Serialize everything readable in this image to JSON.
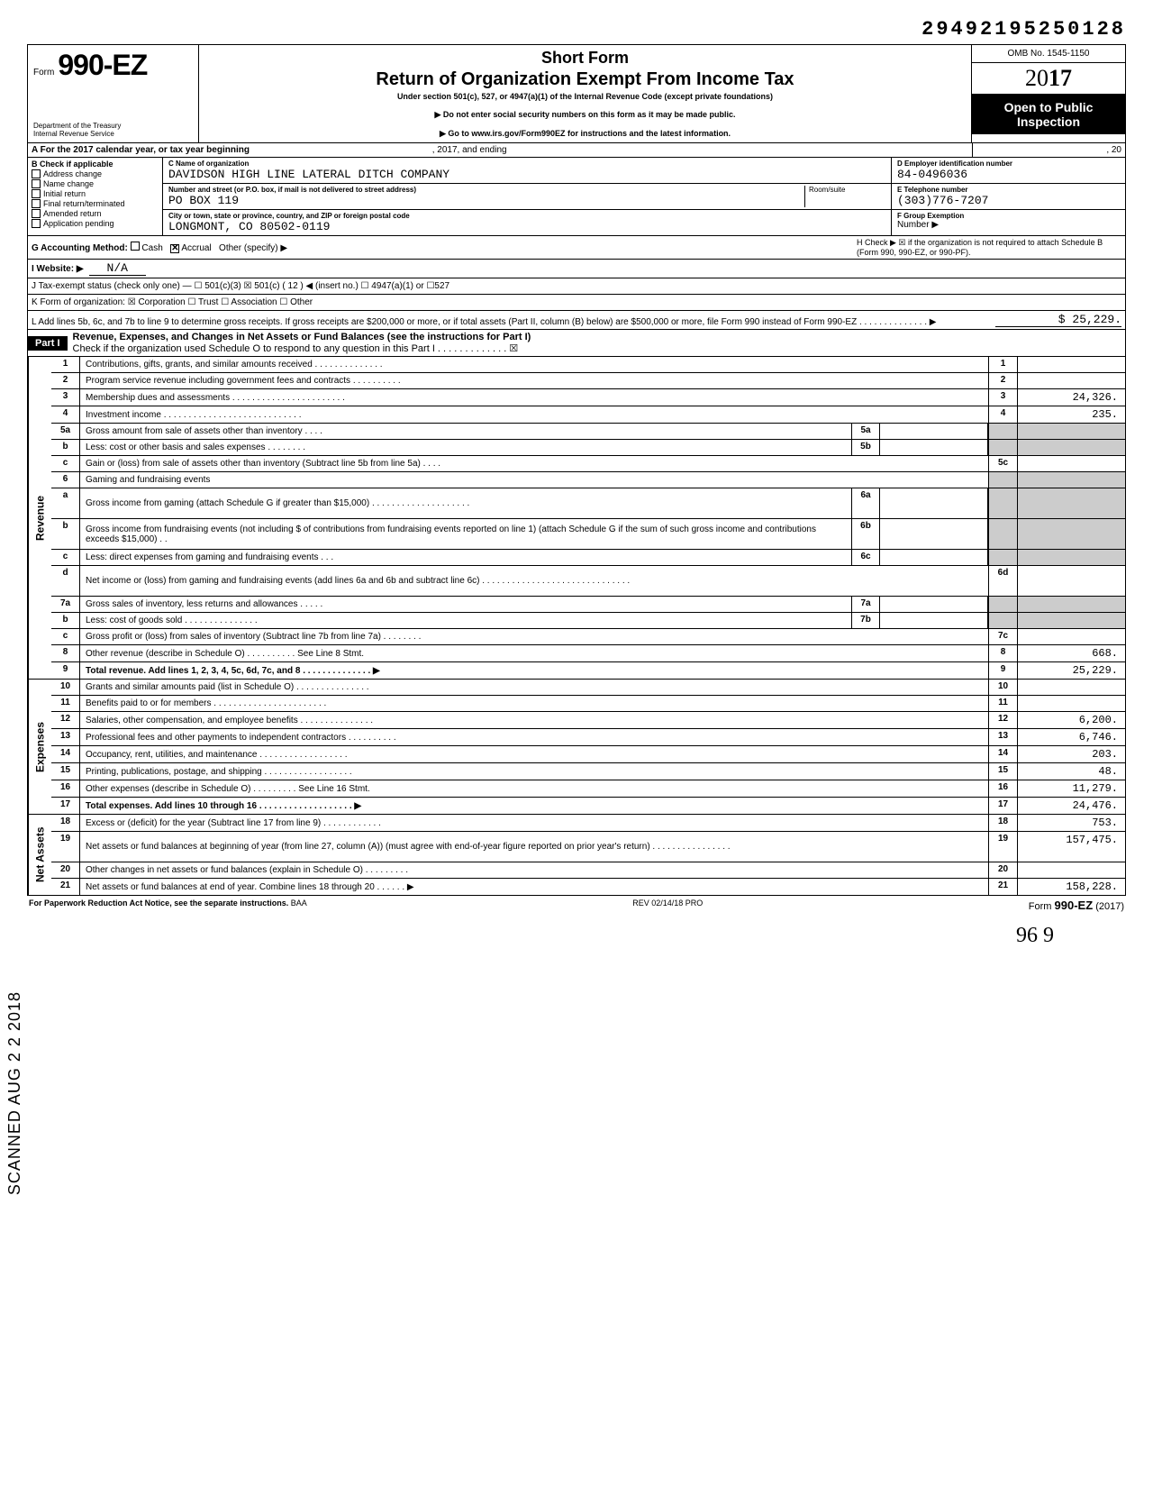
{
  "top_tracking": "29492195250128",
  "header": {
    "form_word": "Form",
    "form_number": "990-EZ",
    "short_form": "Short Form",
    "title": "Return of Organization Exempt From Income Tax",
    "subtitle": "Under section 501(c), 527, or 4947(a)(1) of the Internal Revenue Code (except private foundations)",
    "warn1": "▶ Do not enter social security numbers on this form as it may be made public.",
    "warn2": "▶ Go to www.irs.gov/Form990EZ for instructions and the latest information.",
    "dept1": "Department of the Treasury",
    "dept2": "Internal Revenue Service",
    "omb": "OMB No. 1545-1150",
    "year": "2017",
    "open": "Open to Public Inspection"
  },
  "line_a": {
    "text": "A  For the 2017 calendar year, or tax year beginning",
    "mid": ", 2017, and ending",
    "end": ", 20"
  },
  "box_b": {
    "title": "B  Check if applicable",
    "opts": [
      "Address change",
      "Name change",
      "Initial return",
      "Final return/terminated",
      "Amended return",
      "Application pending"
    ]
  },
  "box_c": {
    "label": "C  Name of organization",
    "name": "DAVIDSON HIGH LINE LATERAL DITCH COMPANY",
    "addr_label": "Number and street (or P.O. box, if mail is not delivered to street address)",
    "addr": "PO BOX 119",
    "room_label": "Room/suite",
    "city_label": "City or town, state or province, country, and ZIP or foreign postal code",
    "city": "LONGMONT, CO 80502-0119"
  },
  "box_d": {
    "label": "D Employer identification number",
    "val": "84-0496036"
  },
  "box_e": {
    "label": "E Telephone number",
    "val": "(303)776-7207"
  },
  "box_f": {
    "label": "F Group Exemption",
    "label2": "Number ▶"
  },
  "line_g": {
    "label": "G  Accounting Method:",
    "cash": "Cash",
    "accrual": "Accrual",
    "other": "Other (specify) ▶"
  },
  "line_h": "H  Check ▶ ☒ if the organization is not required to attach Schedule B (Form 990, 990-EZ, or 990-PF).",
  "line_i": {
    "label": "I   Website: ▶",
    "val": "N/A"
  },
  "line_j": "J  Tax-exempt status (check only one) — ☐ 501(c)(3)   ☒ 501(c) ( 12 ) ◀ (insert no.) ☐ 4947(a)(1) or   ☐527",
  "line_k": "K  Form of organization:   ☒ Corporation    ☐ Trust    ☐ Association    ☐ Other",
  "line_l": {
    "text": "L  Add lines 5b, 6c, and 7b to line 9 to determine gross receipts. If gross receipts are $200,000 or more, or if total assets (Part II, column (B) below) are $500,000 or more, file Form 990 instead of Form 990-EZ . . . . . . . . . . . . . . ▶",
    "val": "25,229."
  },
  "part1": {
    "label": "Part I",
    "title": "Revenue, Expenses, and Changes in Net Assets or Fund Balances (see the instructions for Part I)",
    "check_line": "Check if the organization used Schedule O to respond to any question in this Part I . . . . . . . . . . . . . ☒"
  },
  "rows": [
    {
      "n": "1",
      "d": "Contributions, gifts, grants, and similar amounts received . . . . . . . . . . . . . .",
      "rn": "1",
      "rv": ""
    },
    {
      "n": "2",
      "d": "Program service revenue including government fees and contracts . . . . . . . . . .",
      "rn": "2",
      "rv": ""
    },
    {
      "n": "3",
      "d": "Membership dues and assessments . . . . . . . . . . . . . . . . . . . . . . .",
      "rn": "3",
      "rv": "24,326."
    },
    {
      "n": "4",
      "d": "Investment income . . . . . . . . . . . . . . . . . . . . . . . . . . . .",
      "rn": "4",
      "rv": "235."
    },
    {
      "n": "5a",
      "d": "Gross amount from sale of assets other than inventory . . . .",
      "in": "5a",
      "shaded": true
    },
    {
      "n": "b",
      "d": "Less: cost or other basis and sales expenses . . . . . . . .",
      "in": "5b",
      "shaded": true
    },
    {
      "n": "c",
      "d": "Gain or (loss) from sale of assets other than inventory (Subtract line 5b from line 5a) . . . .",
      "rn": "5c",
      "rv": ""
    },
    {
      "n": "6",
      "d": "Gaming and fundraising events",
      "shaded": true,
      "noright": true
    },
    {
      "n": "a",
      "d": "Gross income from gaming (attach Schedule G if greater than $15,000) . . . . . . . . . . . . . . . . . . . .",
      "in": "6a",
      "shaded": true,
      "tall": true
    },
    {
      "n": "b",
      "d": "Gross income from fundraising events (not including  $                of contributions from fundraising events reported on line 1) (attach Schedule G if the sum of such gross income and contributions exceeds $15,000) . .",
      "in": "6b",
      "shaded": true,
      "tall": true
    },
    {
      "n": "c",
      "d": "Less: direct expenses from gaming and fundraising events . . .",
      "in": "6c",
      "shaded": true
    },
    {
      "n": "d",
      "d": "Net income or (loss) from gaming and fundraising events (add lines 6a and 6b and subtract line 6c) . . . . . . . . . . . . . . . . . . . . . . . . . . . . . .",
      "rn": "6d",
      "rv": "",
      "tall": true
    },
    {
      "n": "7a",
      "d": "Gross sales of inventory, less returns and allowances . . . . .",
      "in": "7a",
      "shaded": true
    },
    {
      "n": "b",
      "d": "Less: cost of goods sold . . . . . . . . . . . . . . .",
      "in": "7b",
      "shaded": true
    },
    {
      "n": "c",
      "d": "Gross profit or (loss) from sales of inventory (Subtract line 7b from line 7a) . . . . . . . .",
      "rn": "7c",
      "rv": ""
    },
    {
      "n": "8",
      "d": "Other revenue (describe in Schedule O) . . . . . . . . . . See Line 8 Stmt.",
      "rn": "8",
      "rv": "668."
    },
    {
      "n": "9",
      "d": "Total revenue. Add lines 1, 2, 3, 4, 5c, 6d, 7c, and 8 . . . . . . . . . . . . . . ▶",
      "rn": "9",
      "rv": "25,229.",
      "bold": true
    }
  ],
  "exp_rows": [
    {
      "n": "10",
      "d": "Grants and similar amounts paid (list in Schedule O) . . . . . . . . . . . . . . .",
      "rn": "10",
      "rv": ""
    },
    {
      "n": "11",
      "d": "Benefits paid to or for members . . . . . . . . . . . . . . . . . . . . . . .",
      "rn": "11",
      "rv": ""
    },
    {
      "n": "12",
      "d": "Salaries, other compensation, and employee benefits . . . . . . . . . . . . . . .",
      "rn": "12",
      "rv": "6,200."
    },
    {
      "n": "13",
      "d": "Professional fees and other payments to independent contractors . . . . . . . . . .",
      "rn": "13",
      "rv": "6,746."
    },
    {
      "n": "14",
      "d": "Occupancy, rent, utilities, and maintenance . . . . . . . . . . . . . . . . . .",
      "rn": "14",
      "rv": "203."
    },
    {
      "n": "15",
      "d": "Printing, publications, postage, and shipping . . . . . . . . . . . . . . . . . .",
      "rn": "15",
      "rv": "48."
    },
    {
      "n": "16",
      "d": "Other expenses (describe in Schedule O) . . . . . . . . . See Line 16 Stmt.",
      "rn": "16",
      "rv": "11,279."
    },
    {
      "n": "17",
      "d": "Total expenses. Add lines 10 through 16 . . . . . . . . . . . . . . . . . . . ▶",
      "rn": "17",
      "rv": "24,476.",
      "bold": true
    }
  ],
  "net_rows": [
    {
      "n": "18",
      "d": "Excess or (deficit) for the year (Subtract line 17 from line 9) . . . . . . . . . . . .",
      "rn": "18",
      "rv": "753."
    },
    {
      "n": "19",
      "d": "Net assets or fund balances at beginning of year (from line 27, column (A)) (must agree with end-of-year figure reported on prior year's return) . . . . . . . . . . . . . . . .",
      "rn": "19",
      "rv": "157,475.",
      "tall": true
    },
    {
      "n": "20",
      "d": "Other changes in net assets or fund balances (explain in Schedule O) . . . . . . . . .",
      "rn": "20",
      "rv": ""
    },
    {
      "n": "21",
      "d": "Net assets or fund balances at end of year. Combine lines 18 through 20 . . . . . . ▶",
      "rn": "21",
      "rv": "158,228."
    }
  ],
  "side_labels": {
    "rev": "Revenue",
    "exp": "Expenses",
    "net": "Net Assets"
  },
  "footer": {
    "left": "For Paperwork Reduction Act Notice, see the separate instructions.",
    "baa": "BAA",
    "mid": "REV 02/14/18 PRO",
    "right_pre": "Form ",
    "right_b": "990-EZ",
    "right_post": " (2017)"
  },
  "stamp": "SCANNED AUG 2 2 2018",
  "handwrite": "96    9"
}
